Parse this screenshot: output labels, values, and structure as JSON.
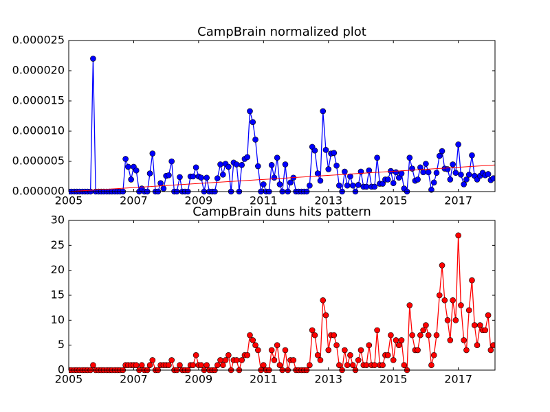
{
  "chart_data": [
    {
      "type": "line",
      "title": "CampBrain normalized plot",
      "x": [
        2005,
        2005.08,
        2005.17,
        2005.25,
        2005.33,
        2005.42,
        2005.5,
        2005.58,
        2005.67,
        2005.75,
        2005.83,
        2005.92,
        2006,
        2006.08,
        2006.17,
        2006.25,
        2006.33,
        2006.42,
        2006.5,
        2006.58,
        2006.67,
        2006.75,
        2006.83,
        2006.92,
        2007,
        2007.08,
        2007.17,
        2007.25,
        2007.33,
        2007.42,
        2007.5,
        2007.58,
        2007.67,
        2007.75,
        2007.83,
        2007.92,
        2008,
        2008.08,
        2008.17,
        2008.25,
        2008.33,
        2008.42,
        2008.5,
        2008.58,
        2008.67,
        2008.75,
        2008.83,
        2008.92,
        2009,
        2009.08,
        2009.17,
        2009.25,
        2009.33,
        2009.42,
        2009.5,
        2009.58,
        2009.67,
        2009.75,
        2009.83,
        2009.92,
        2010,
        2010.08,
        2010.17,
        2010.25,
        2010.33,
        2010.42,
        2010.5,
        2010.58,
        2010.67,
        2010.75,
        2010.83,
        2010.92,
        2011,
        2011.08,
        2011.17,
        2011.25,
        2011.33,
        2011.42,
        2011.5,
        2011.58,
        2011.67,
        2011.75,
        2011.83,
        2011.92,
        2012,
        2012.08,
        2012.17,
        2012.25,
        2012.33,
        2012.42,
        2012.5,
        2012.58,
        2012.67,
        2012.75,
        2012.83,
        2012.92,
        2013,
        2013.08,
        2013.17,
        2013.25,
        2013.33,
        2013.42,
        2013.5,
        2013.58,
        2013.67,
        2013.75,
        2013.83,
        2013.92,
        2014,
        2014.08,
        2014.17,
        2014.25,
        2014.33,
        2014.42,
        2014.5,
        2014.58,
        2014.67,
        2014.75,
        2014.83,
        2014.92,
        2015,
        2015.08,
        2015.17,
        2015.25,
        2015.33,
        2015.42,
        2015.5,
        2015.58,
        2015.67,
        2015.75,
        2015.83,
        2015.92,
        2016,
        2016.08,
        2016.17,
        2016.25,
        2016.33,
        2016.42,
        2016.5,
        2016.58,
        2016.67,
        2016.75,
        2016.83,
        2016.92,
        2017,
        2017.08,
        2017.17,
        2017.25,
        2017.33,
        2017.42,
        2017.5,
        2017.58,
        2017.67,
        2017.75,
        2017.83,
        2017.92,
        2018,
        2018.08
      ],
      "series": [
        {
          "color": "#0000ff",
          "values": [
            0,
            0,
            0,
            0,
            0,
            0,
            0,
            0,
            0,
            2.2e-05,
            0,
            0,
            0,
            0,
            0,
            0,
            0,
            0,
            0,
            0,
            0,
            5.4e-06,
            4.1e-06,
            2e-06,
            4.1e-06,
            3.5e-06,
            0,
            5e-07,
            0,
            0,
            3e-06,
            6.3e-06,
            0,
            0,
            1.4e-06,
            5e-07,
            2.6e-06,
            2.7e-06,
            5e-06,
            0,
            0,
            2.4e-06,
            0,
            0,
            0,
            2.5e-06,
            2.5e-06,
            4e-06,
            2.5e-06,
            2.3e-06,
            0,
            2.3e-06,
            0,
            0,
            0,
            2.2e-06,
            4.5e-06,
            2.8e-06,
            4.6e-06,
            4.1e-06,
            0,
            4.8e-06,
            4.5e-06,
            0,
            4.4e-06,
            5.4e-06,
            5.7e-06,
            1.33e-05,
            1.15e-05,
            8.6e-06,
            4.2e-06,
            0,
            1.2e-06,
            0,
            0,
            4.4e-06,
            2.3e-06,
            5.6e-06,
            1.2e-06,
            0,
            4.5e-06,
            0,
            1.5e-06,
            2.3e-06,
            0,
            0,
            0,
            0,
            0,
            1e-06,
            7.4e-06,
            6.8e-06,
            3e-06,
            1.8e-06,
            1.33e-05,
            6.9e-06,
            3.7e-06,
            6.3e-06,
            6.4e-06,
            4.3e-06,
            1e-06,
            0,
            3.3e-06,
            1e-06,
            2.5e-06,
            1e-06,
            0,
            1.1e-06,
            3.3e-06,
            8e-07,
            8e-07,
            3.5e-06,
            8e-07,
            8e-07,
            5.6e-06,
            1.3e-06,
            1.3e-06,
            2e-06,
            2e-06,
            3.4e-06,
            1.4e-06,
            3.2e-06,
            2.3e-06,
            3e-06,
            5e-07,
            0,
            5.6e-06,
            3.8e-06,
            1.8e-06,
            2e-06,
            4e-06,
            3.2e-06,
            4.6e-06,
            3.2e-06,
            3e-07,
            1.5e-06,
            3.1e-06,
            5.9e-06,
            6.7e-06,
            3.8e-06,
            3.7e-06,
            2e-06,
            4.5e-06,
            3.1e-06,
            7.8e-06,
            2.8e-06,
            1.2e-06,
            2e-06,
            2.8e-06,
            6e-06,
            2.6e-06,
            2e-06,
            2.6e-06,
            3.1e-06,
            2.7e-06,
            2.9e-06,
            1.9e-06,
            2.2e-06
          ]
        }
      ],
      "trend": {
        "color": "#ff0000",
        "x": [
          2005,
          2018.13
        ],
        "values": [
          0,
          4.4e-06
        ]
      },
      "xlim": [
        2005,
        2018.13
      ],
      "xticks": [
        2005,
        2007,
        2009,
        2011,
        2013,
        2015,
        2017
      ],
      "ylim": [
        0,
        2.5e-05
      ],
      "yticks": [
        {
          "value": 0,
          "label": "0.000000"
        },
        {
          "value": 5e-06,
          "label": "0.000005"
        },
        {
          "value": 1e-05,
          "label": "0.000010"
        },
        {
          "value": 1.5e-05,
          "label": "0.000015"
        },
        {
          "value": 2e-05,
          "label": "0.000020"
        },
        {
          "value": 2.5e-05,
          "label": "0.000025"
        }
      ]
    },
    {
      "type": "line",
      "title": "CampBrain duns hits pattern",
      "x": [
        2005,
        2005.08,
        2005.17,
        2005.25,
        2005.33,
        2005.42,
        2005.5,
        2005.58,
        2005.67,
        2005.75,
        2005.83,
        2005.92,
        2006,
        2006.08,
        2006.17,
        2006.25,
        2006.33,
        2006.42,
        2006.5,
        2006.58,
        2006.67,
        2006.75,
        2006.83,
        2006.92,
        2007,
        2007.08,
        2007.17,
        2007.25,
        2007.33,
        2007.42,
        2007.5,
        2007.58,
        2007.67,
        2007.75,
        2007.83,
        2007.92,
        2008,
        2008.08,
        2008.17,
        2008.25,
        2008.33,
        2008.42,
        2008.5,
        2008.58,
        2008.67,
        2008.75,
        2008.83,
        2008.92,
        2009,
        2009.08,
        2009.17,
        2009.25,
        2009.33,
        2009.42,
        2009.5,
        2009.58,
        2009.67,
        2009.75,
        2009.83,
        2009.92,
        2010,
        2010.08,
        2010.17,
        2010.25,
        2010.33,
        2010.42,
        2010.5,
        2010.58,
        2010.67,
        2010.75,
        2010.83,
        2010.92,
        2011,
        2011.08,
        2011.17,
        2011.25,
        2011.33,
        2011.42,
        2011.5,
        2011.58,
        2011.67,
        2011.75,
        2011.83,
        2011.92,
        2012,
        2012.08,
        2012.17,
        2012.25,
        2012.33,
        2012.42,
        2012.5,
        2012.58,
        2012.67,
        2012.75,
        2012.83,
        2012.92,
        2013,
        2013.08,
        2013.17,
        2013.25,
        2013.33,
        2013.42,
        2013.5,
        2013.58,
        2013.67,
        2013.75,
        2013.83,
        2013.92,
        2014,
        2014.08,
        2014.17,
        2014.25,
        2014.33,
        2014.42,
        2014.5,
        2014.58,
        2014.67,
        2014.75,
        2014.83,
        2014.92,
        2015,
        2015.08,
        2015.17,
        2015.25,
        2015.33,
        2015.42,
        2015.5,
        2015.58,
        2015.67,
        2015.75,
        2015.83,
        2015.92,
        2016,
        2016.08,
        2016.17,
        2016.25,
        2016.33,
        2016.42,
        2016.5,
        2016.58,
        2016.67,
        2016.75,
        2016.83,
        2016.92,
        2017,
        2017.08,
        2017.17,
        2017.25,
        2017.33,
        2017.42,
        2017.5,
        2017.58,
        2017.67,
        2017.75,
        2017.83,
        2017.92,
        2018,
        2018.08
      ],
      "series": [
        {
          "color": "#ff0000",
          "values": [
            0,
            0,
            0,
            0,
            0,
            0,
            0,
            0,
            0,
            1,
            0,
            0,
            0,
            0,
            0,
            0,
            0,
            0,
            0,
            0,
            0,
            1,
            1,
            1,
            1,
            1,
            0,
            1,
            0,
            0,
            1,
            2,
            0,
            0,
            1,
            1,
            1,
            1,
            2,
            0,
            0,
            1,
            0,
            0,
            0,
            1,
            1,
            3,
            1,
            1,
            0,
            1,
            0,
            0,
            0,
            1,
            2,
            1,
            2,
            3,
            0,
            2,
            2,
            0,
            2,
            3,
            3,
            7,
            6,
            5,
            4,
            0,
            1,
            0,
            0,
            4,
            2,
            5,
            1,
            0,
            4,
            0,
            2,
            2,
            0,
            0,
            0,
            0,
            0,
            1,
            8,
            7,
            3,
            2,
            14,
            11,
            4,
            7,
            7,
            5,
            1,
            0,
            4,
            1,
            3,
            1,
            0,
            2,
            4,
            1,
            1,
            5,
            1,
            1,
            8,
            1,
            1,
            3,
            3,
            7,
            2,
            6,
            5,
            6,
            1,
            0,
            13,
            7,
            4,
            4,
            7,
            8,
            9,
            7,
            1,
            3,
            7,
            15,
            21,
            14,
            10,
            6,
            14,
            10,
            27,
            13,
            6,
            4,
            12,
            18,
            9,
            5,
            9,
            8,
            8,
            11,
            4,
            5
          ]
        }
      ],
      "xlim": [
        2005,
        2018.13
      ],
      "xticks": [
        2005,
        2007,
        2009,
        2011,
        2013,
        2015,
        2017
      ],
      "ylim": [
        0,
        30
      ],
      "yticks": [
        0,
        5,
        10,
        15,
        20,
        25,
        30
      ]
    }
  ]
}
